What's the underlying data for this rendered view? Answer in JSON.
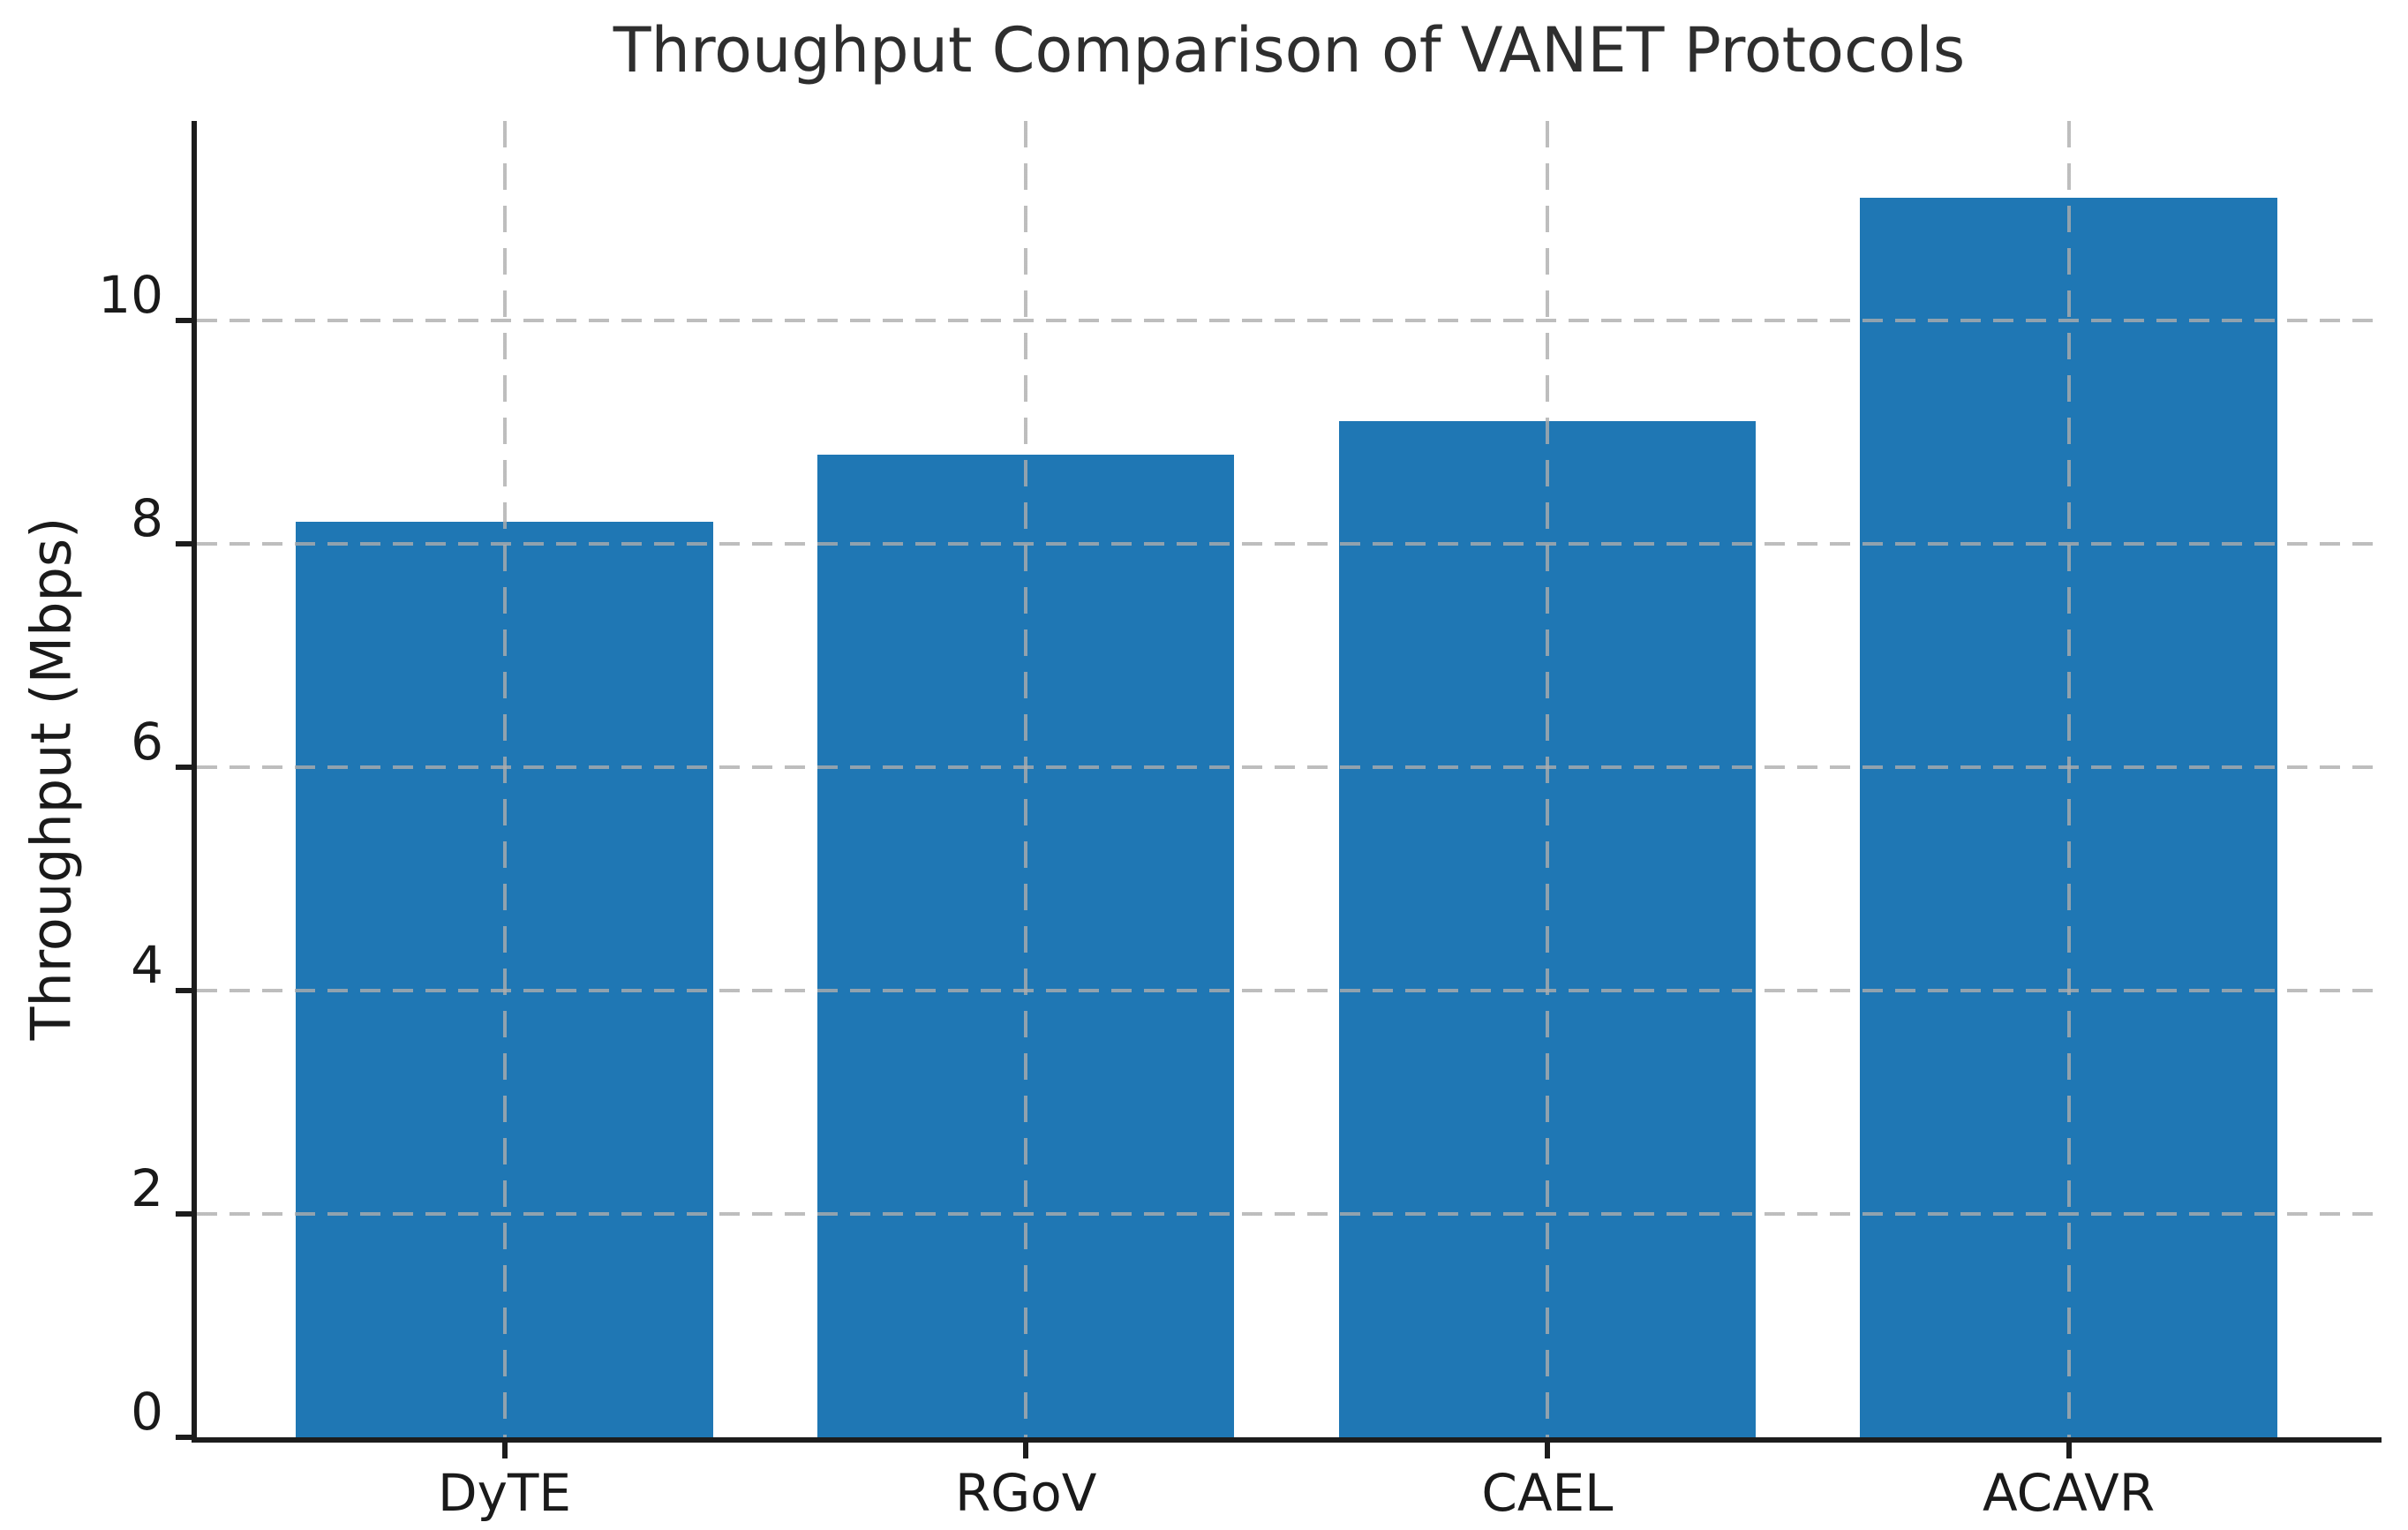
{
  "figure": {
    "background_color": "#ffffff",
    "text_color": "#1a1a1a",
    "spine_color": "#1c1c1c",
    "gridline_color": "#adadad"
  },
  "chart_data": {
    "type": "bar",
    "title": "Throughput Comparison of VANET Protocols",
    "xlabel": "",
    "ylabel": "Throughput (Mbps)",
    "categories": [
      "DyTE",
      "RGoV",
      "CAEL",
      "ACAVR"
    ],
    "values": [
      8.2,
      8.8,
      9.1,
      11.1
    ],
    "yticks": [
      0,
      2,
      4,
      6,
      8,
      10
    ],
    "ylim": [
      0,
      11.79
    ],
    "xlim": [
      -0.59,
      3.6
    ],
    "bar_width": 0.8,
    "bar_color": "#1f77b4",
    "grid": {
      "visible": true,
      "line_style": "dashed",
      "horizontal_at_yticks": true,
      "vertical_at_categories": true,
      "drawn_over_bars": true
    },
    "legend": null
  }
}
